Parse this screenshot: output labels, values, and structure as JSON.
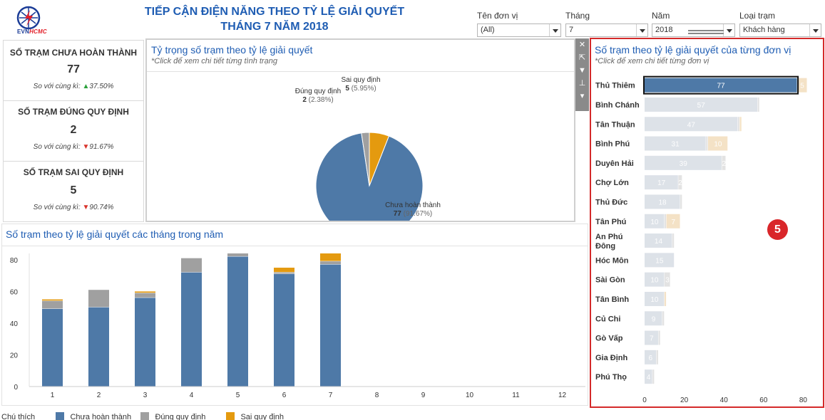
{
  "header": {
    "logo_text_main": "EVN",
    "logo_text_accent": "HCMC",
    "title_line1": "TIẾP CẬN ĐIỆN NĂNG THEO TỶ LỆ GIẢI QUYẾT",
    "title_line2": "THÁNG 7 NĂM 2018"
  },
  "filters": [
    {
      "label": "Tên đơn vị",
      "value": "(All)"
    },
    {
      "label": "Tháng",
      "value": "7"
    },
    {
      "label": "Năm",
      "value": "2018"
    },
    {
      "label": "Loại trạm",
      "value": "Khách hàng"
    }
  ],
  "kpis": [
    {
      "title": "SỐ TRẠM CHƯA HOÀN THÀNH",
      "value": "77",
      "compare_label": "So với cùng kì:",
      "arrow": "▲",
      "change": "37.50%",
      "direction": "up"
    },
    {
      "title": "SỐ TRẠM ĐÚNG QUY ĐỊNH",
      "value": "2",
      "compare_label": "So với cùng kì:",
      "arrow": "▼",
      "change": "91.67%",
      "direction": "down"
    },
    {
      "title": "SỐ TRẠM SAI QUY ĐỊNH",
      "value": "5",
      "compare_label": "So với cùng kì:",
      "arrow": "▼",
      "change": "90.74%",
      "direction": "down"
    }
  ],
  "pie_panel": {
    "title": "Tỷ trọng số trạm theo tỷ lệ giải quyết",
    "subtitle": "*Click để xem chi tiết từng tình trạng"
  },
  "monthly_panel": {
    "title": "Số trạm theo tỷ lệ giải quyết các tháng trong năm"
  },
  "rank_panel": {
    "title": "Số trạm theo tỷ lệ giải quyết của từng đơn vị",
    "subtitle": "*Click để xem chi tiết từng đơn vị"
  },
  "legend": {
    "title": "Chú thích",
    "items": [
      {
        "label": "Chưa hoàn thành",
        "color": "#4e79a7"
      },
      {
        "label": "Đúng quy định",
        "color": "#a0a0a0"
      },
      {
        "label": "Sai quy định",
        "color": "#e49a0f"
      }
    ]
  },
  "toolbar_icons": [
    "close-icon",
    "popout-icon",
    "filter-icon",
    "pin-icon",
    "dropdown-icon"
  ],
  "annotation_marker": "5",
  "colors": {
    "chua": "#4e79a7",
    "dung": "#a0a0a0",
    "sai": "#e49a0f",
    "title_blue": "#1f5db3",
    "highlight_red": "#d42a2a"
  },
  "chart_data": [
    {
      "type": "pie",
      "slices": [
        {
          "name": "Chưa hoàn thành",
          "value": 77,
          "percent": "(91.67%)",
          "color": "#4e79a7"
        },
        {
          "name": "Đúng quy định",
          "value": 2,
          "percent": "(2.38%)",
          "color": "#a0a0a0"
        },
        {
          "name": "Sai quy định",
          "value": 5,
          "percent": "(5.95%)",
          "color": "#e49a0f"
        }
      ]
    },
    {
      "type": "bar",
      "stacked": true,
      "categories": [
        "1",
        "2",
        "3",
        "4",
        "5",
        "6",
        "7",
        "8",
        "9",
        "10",
        "11",
        "12"
      ],
      "series": [
        {
          "name": "Chưa hoàn thành",
          "color": "#4e79a7",
          "values": [
            49,
            50,
            56,
            72,
            82,
            71,
            77,
            0,
            0,
            0,
            0,
            0
          ]
        },
        {
          "name": "Đúng quy định",
          "color": "#a0a0a0",
          "values": [
            5,
            11,
            3,
            9,
            2,
            1,
            2,
            0,
            0,
            0,
            0,
            0
          ]
        },
        {
          "name": "Sai quy định",
          "color": "#e49a0f",
          "values": [
            1,
            0,
            1,
            0,
            0,
            3,
            5,
            0,
            0,
            0,
            0,
            0
          ]
        }
      ],
      "yticks": [
        0,
        20,
        40,
        60,
        80
      ],
      "ylim": [
        0,
        84
      ]
    },
    {
      "type": "bar",
      "orientation": "horizontal",
      "stacked": true,
      "categories": [
        "Thủ Thiêm",
        "Bình Chánh",
        "Tân Thuận",
        "Bình Phú",
        "Duyên Hải",
        "Chợ Lớn",
        "Thủ Đức",
        "Tân Phú",
        "An Phú Đông",
        "Hóc Môn",
        "Sài Gòn",
        "Tân Bình",
        "Củ Chi",
        "Gò Vấp",
        "Gia Định",
        "Phú Thọ"
      ],
      "series": [
        {
          "name": "Chưa hoàn thành",
          "values": [
            77,
            57,
            47,
            31,
            39,
            17,
            18,
            10,
            14,
            15,
            10,
            10,
            9,
            7,
            6,
            4
          ]
        },
        {
          "name": "Đúng quy định",
          "values": [
            0,
            1,
            1,
            1,
            2,
            2,
            1,
            1,
            1,
            0,
            3,
            0,
            1,
            1,
            1,
            1
          ]
        },
        {
          "name": "Sai quy định",
          "values": [
            5,
            0,
            1,
            10,
            0,
            0,
            0,
            7,
            0,
            0,
            0,
            1,
            0,
            0,
            0,
            0
          ]
        }
      ],
      "xticks": [
        0,
        20,
        40,
        60,
        80
      ],
      "xlim": [
        0,
        82
      ],
      "selected": "Thủ Thiêm"
    }
  ]
}
